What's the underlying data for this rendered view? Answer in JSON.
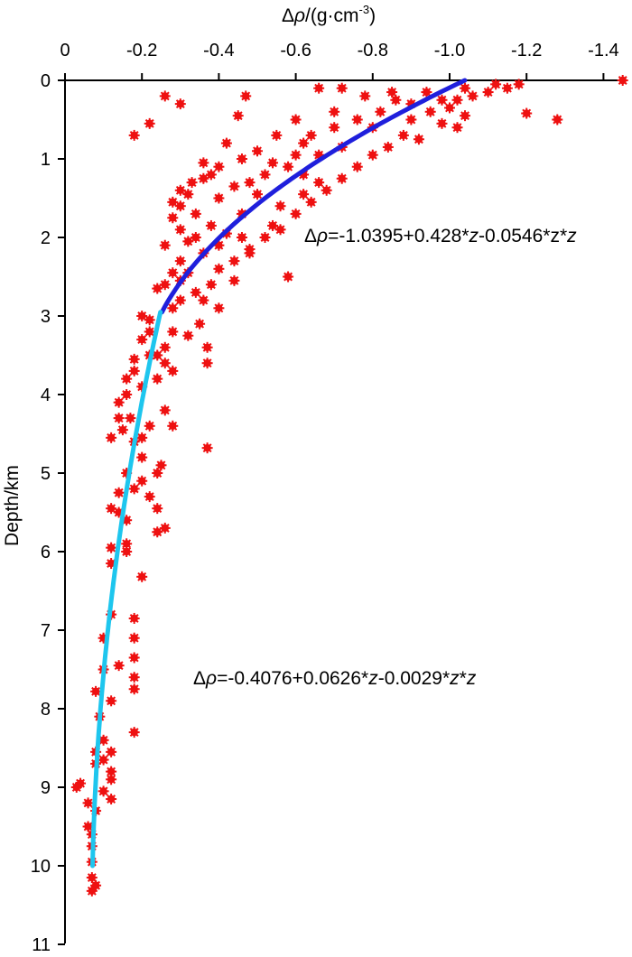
{
  "chart_data": {
    "type": "scatter",
    "title": "",
    "xlabel_parts": {
      "delta": "Δ",
      "rho": "ρ",
      "rest": "/(g·cm",
      "exp": "-3",
      "close": ")"
    },
    "ylabel": "Depth/km",
    "xlim": [
      0,
      -1.45
    ],
    "ylim": [
      0,
      11
    ],
    "x_axis_position": "top",
    "y_axis_inverted": true,
    "grid": false,
    "legend": "none",
    "x_ticks": [
      0,
      -0.2,
      -0.4,
      -0.6,
      -0.8,
      -1.0,
      -1.2,
      -1.4
    ],
    "x_tick_labels": [
      "0",
      "-0.2",
      "-0.4",
      "-0.6",
      "-0.8",
      "-1.0",
      "-1.2",
      "-1.4"
    ],
    "y_ticks": [
      0,
      1,
      2,
      3,
      4,
      5,
      6,
      7,
      8,
      9,
      10,
      11
    ],
    "y_tick_labels": [
      "0",
      "1",
      "2",
      "3",
      "4",
      "5",
      "6",
      "7",
      "8",
      "9",
      "10",
      "11"
    ],
    "colors": {
      "points": "#ee1111",
      "fit_shallow": "#1f1fdc",
      "fit_deep": "#1ec6ee",
      "axis": "#000000"
    },
    "series": [
      {
        "kind": "scatter",
        "marker": "star",
        "points": [
          [
            -0.26,
            0.2
          ],
          [
            -0.22,
            0.55
          ],
          [
            -0.45,
            0.45
          ],
          [
            -0.55,
            0.7
          ],
          [
            -0.6,
            0.5
          ],
          [
            -0.18,
            0.7
          ],
          [
            -0.3,
            0.3
          ],
          [
            -0.47,
            0.2
          ],
          [
            -0.66,
            0.1
          ],
          [
            -0.78,
            0.2
          ],
          [
            -0.85,
            0.15
          ],
          [
            -0.9,
            0.3
          ],
          [
            -0.95,
            0.4
          ],
          [
            -1.0,
            0.35
          ],
          [
            -0.98,
            0.55
          ],
          [
            -1.02,
            0.6
          ],
          [
            -1.04,
            0.45
          ],
          [
            -1.06,
            0.2
          ],
          [
            -1.1,
            0.15
          ],
          [
            -1.12,
            0.05
          ],
          [
            -1.15,
            0.1
          ],
          [
            -1.18,
            0.05
          ],
          [
            -1.2,
            0.42
          ],
          [
            -1.28,
            0.5
          ],
          [
            -1.45,
            0.0
          ],
          [
            -0.72,
            0.1
          ],
          [
            -0.8,
            0.6
          ],
          [
            -0.88,
            0.7
          ],
          [
            -0.92,
            0.75
          ],
          [
            -0.7,
            0.6
          ],
          [
            -0.62,
            0.8
          ],
          [
            -0.66,
            0.95
          ],
          [
            -0.58,
            1.1
          ],
          [
            -0.52,
            1.2
          ],
          [
            -0.48,
            1.3
          ],
          [
            -0.5,
            1.45
          ],
          [
            -0.44,
            1.35
          ],
          [
            -0.4,
            1.5
          ],
          [
            -0.38,
            1.2
          ],
          [
            -0.36,
            1.05
          ],
          [
            -0.33,
            1.3
          ],
          [
            -0.3,
            1.4
          ],
          [
            -0.28,
            1.55
          ],
          [
            -0.34,
            1.7
          ],
          [
            -0.38,
            1.85
          ],
          [
            -0.42,
            1.95
          ],
          [
            -0.46,
            2.0
          ],
          [
            -0.4,
            2.1
          ],
          [
            -0.36,
            2.2
          ],
          [
            -0.32,
            2.05
          ],
          [
            -0.3,
            2.3
          ],
          [
            -0.28,
            2.45
          ],
          [
            -0.26,
            2.6
          ],
          [
            -0.3,
            2.8
          ],
          [
            -0.34,
            2.7
          ],
          [
            -0.36,
            2.8
          ],
          [
            -0.38,
            2.6
          ],
          [
            -0.4,
            2.4
          ],
          [
            -0.44,
            2.3
          ],
          [
            -0.48,
            2.15
          ],
          [
            -0.52,
            2.0
          ],
          [
            -0.56,
            1.9
          ],
          [
            -0.6,
            1.7
          ],
          [
            -0.64,
            1.55
          ],
          [
            -0.68,
            1.4
          ],
          [
            -0.72,
            1.25
          ],
          [
            -0.76,
            1.1
          ],
          [
            -0.8,
            0.95
          ],
          [
            -0.84,
            0.85
          ],
          [
            -0.72,
            0.85
          ],
          [
            -0.66,
            1.3
          ],
          [
            -0.62,
            1.45
          ],
          [
            -0.56,
            1.6
          ],
          [
            -0.54,
            1.85
          ],
          [
            -0.48,
            2.2
          ],
          [
            -0.44,
            2.55
          ],
          [
            -0.4,
            2.9
          ],
          [
            -0.37,
            3.4
          ],
          [
            -0.37,
            3.6
          ],
          [
            -0.37,
            4.68
          ],
          [
            -0.35,
            3.1
          ],
          [
            -0.32,
            3.25
          ],
          [
            -0.28,
            3.2
          ],
          [
            -0.26,
            3.4
          ],
          [
            -0.24,
            3.5
          ],
          [
            -0.22,
            3.2
          ],
          [
            -0.2,
            3.0
          ],
          [
            -0.18,
            3.55
          ],
          [
            -0.16,
            3.8
          ],
          [
            -0.2,
            3.9
          ],
          [
            -0.24,
            3.8
          ],
          [
            -0.28,
            3.7
          ],
          [
            -0.26,
            4.2
          ],
          [
            -0.22,
            4.4
          ],
          [
            -0.28,
            4.4
          ],
          [
            -0.2,
            4.55
          ],
          [
            -0.17,
            4.3
          ],
          [
            -0.15,
            4.45
          ],
          [
            -0.14,
            4.1
          ],
          [
            -0.12,
            4.55
          ],
          [
            -0.25,
            4.9
          ],
          [
            -0.24,
            5.0
          ],
          [
            -0.22,
            5.3
          ],
          [
            -0.2,
            5.1
          ],
          [
            -0.24,
            5.45
          ],
          [
            -0.26,
            5.7
          ],
          [
            -0.24,
            5.75
          ],
          [
            -0.14,
            5.25
          ],
          [
            -0.12,
            5.45
          ],
          [
            -0.16,
            5.6
          ],
          [
            -0.18,
            5.2
          ],
          [
            -0.16,
            5.9
          ],
          [
            -0.12,
            5.95
          ],
          [
            -0.2,
            6.32
          ],
          [
            -0.18,
            6.85
          ],
          [
            -0.18,
            7.1
          ],
          [
            -0.18,
            7.35
          ],
          [
            -0.18,
            7.6
          ],
          [
            -0.18,
            7.75
          ],
          [
            -0.14,
            7.45
          ],
          [
            -0.12,
            7.9
          ],
          [
            -0.08,
            7.78
          ],
          [
            -0.18,
            8.3
          ],
          [
            -0.12,
            8.55
          ],
          [
            -0.1,
            8.65
          ],
          [
            -0.12,
            8.8
          ],
          [
            -0.12,
            8.9
          ],
          [
            -0.12,
            9.15
          ],
          [
            -0.1,
            9.05
          ],
          [
            -0.08,
            8.55
          ],
          [
            -0.04,
            8.95
          ],
          [
            -0.03,
            9.0
          ],
          [
            -0.06,
            9.2
          ],
          [
            -0.07,
            9.75
          ],
          [
            -0.07,
            9.95
          ],
          [
            -0.07,
            10.15
          ],
          [
            -0.07,
            10.32
          ],
          [
            -0.08,
            10.25
          ],
          [
            -0.06,
            9.5
          ],
          [
            -0.1,
            8.4
          ],
          [
            -0.16,
            6.0
          ],
          [
            -0.22,
            3.5
          ],
          [
            -0.3,
            2.55
          ],
          [
            -0.46,
            1.7
          ],
          [
            -0.58,
            2.5
          ],
          [
            -0.62,
            1.2
          ],
          [
            -0.7,
            0.4
          ],
          [
            -0.76,
            0.5
          ],
          [
            -0.82,
            0.4
          ],
          [
            -0.86,
            0.25
          ],
          [
            -0.9,
            0.5
          ],
          [
            -0.94,
            0.15
          ],
          [
            -0.98,
            0.25
          ],
          [
            -1.02,
            0.25
          ],
          [
            -1.04,
            0.1
          ],
          [
            -0.64,
            0.7
          ],
          [
            -0.6,
            0.95
          ],
          [
            -0.54,
            1.05
          ],
          [
            -0.5,
            0.9
          ],
          [
            -0.46,
            1.0
          ],
          [
            -0.42,
            0.8
          ],
          [
            -0.4,
            1.1
          ],
          [
            -0.36,
            1.25
          ],
          [
            -0.32,
            1.45
          ],
          [
            -0.3,
            1.6
          ],
          [
            -0.28,
            1.75
          ],
          [
            -0.34,
            2.0
          ],
          [
            -0.3,
            1.9
          ],
          [
            -0.26,
            2.1
          ],
          [
            -0.32,
            2.45
          ],
          [
            -0.24,
            2.65
          ],
          [
            -0.28,
            2.9
          ],
          [
            -0.22,
            3.05
          ],
          [
            -0.26,
            3.6
          ],
          [
            -0.2,
            3.3
          ],
          [
            -0.18,
            3.7
          ],
          [
            -0.16,
            4.0
          ],
          [
            -0.14,
            4.3
          ],
          [
            -0.18,
            4.6
          ],
          [
            -0.2,
            4.8
          ],
          [
            -0.16,
            5.0
          ],
          [
            -0.14,
            5.5
          ],
          [
            -0.12,
            6.15
          ],
          [
            -0.12,
            6.8
          ],
          [
            -0.1,
            7.1
          ],
          [
            -0.1,
            7.5
          ],
          [
            -0.09,
            8.1
          ],
          [
            -0.08,
            8.7
          ],
          [
            -0.08,
            9.3
          ],
          [
            -0.07,
            9.6
          ]
        ]
      },
      {
        "kind": "fit",
        "equation_parts": {
          "delta": "Δ",
          "rho": "ρ",
          "body1": "=-1.0395+0.428*",
          "z1": "z",
          "body2": "-0.0546*z*",
          "z2": "z"
        },
        "coefficients": [
          -1.0395,
          0.428,
          -0.0546
        ],
        "z_range": [
          0,
          2.95
        ]
      },
      {
        "kind": "fit",
        "equation_parts": {
          "delta": "Δ",
          "rho": "ρ",
          "body1": "=-0.4076+0.0626*",
          "z1": "z",
          "body2": "-0.0029*",
          "z2": "z",
          "body3": "*",
          "z3": "z"
        },
        "coefficients": [
          -0.4076,
          0.0626,
          -0.0029
        ],
        "z_range": [
          2.95,
          10
        ]
      }
    ]
  }
}
